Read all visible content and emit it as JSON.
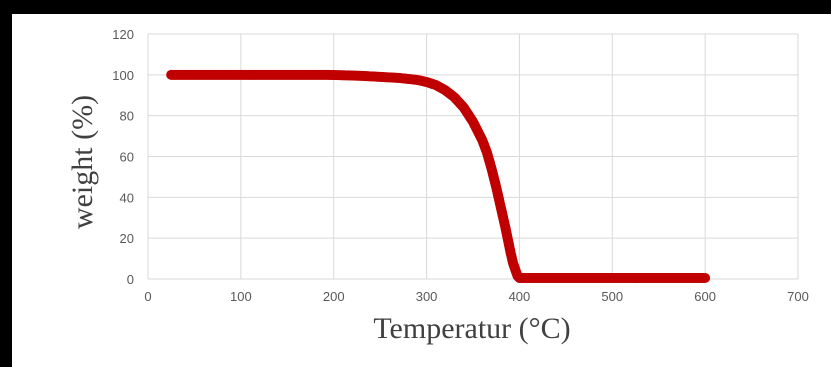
{
  "chart_data": {
    "type": "scatter",
    "title": "",
    "xlabel": "Temperatur (°C)",
    "ylabel": "weight (%)",
    "xlim": [
      0,
      700
    ],
    "ylim": [
      0,
      120
    ],
    "xticks": [
      0,
      100,
      200,
      300,
      400,
      500,
      600,
      700
    ],
    "yticks": [
      0,
      20,
      40,
      60,
      80,
      100,
      120
    ],
    "grid": true,
    "marker_color": "#C00000",
    "series": [
      {
        "name": "",
        "x": [
          25,
          50,
          100,
          150,
          190,
          210,
          230,
          250,
          270,
          290,
          300,
          310,
          320,
          330,
          340,
          350,
          360,
          365,
          370,
          375,
          380,
          385,
          390,
          393,
          396,
          398,
          400,
          420,
          450,
          500,
          550,
          600
        ],
        "y": [
          100,
          100,
          100,
          100,
          100,
          99.8,
          99.5,
          99,
          98.5,
          97.5,
          96.5,
          95,
          92.5,
          89,
          84,
          77,
          68,
          62,
          54,
          45,
          35,
          25,
          14,
          8,
          4,
          1.5,
          0.5,
          0.5,
          0.5,
          0.5,
          0.5,
          0.5
        ]
      }
    ]
  }
}
